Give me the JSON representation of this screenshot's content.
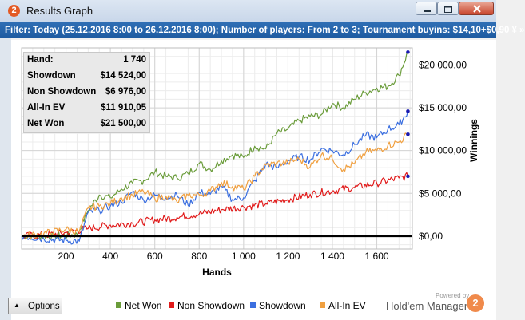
{
  "window": {
    "app_icon_text": "2",
    "title": "Results Graph"
  },
  "filter_text": "Filter: Today (25.12.2016 8:00 to 26.12.2016 8:00); Number of players: From 2 to 3; Tournament buyins: $14,10+$0,90 ¥ »",
  "stats": [
    {
      "label": "Hand:",
      "value": "1 740"
    },
    {
      "label": "Showdown",
      "value": "$14 524,00"
    },
    {
      "label": "Non Showdown",
      "value": "$6 976,00"
    },
    {
      "label": "All-In EV",
      "value": "$11 910,05"
    },
    {
      "label": "Net Won",
      "value": "$21 500,00"
    }
  ],
  "options_label": "Options",
  "powered_by": "Powered by",
  "brand_name": "Hold'em Manager",
  "brand_icon_text": "2",
  "colors": {
    "net_won": "#6a9c3a",
    "non_showdown": "#e11b1b",
    "showdown": "#3b6fe0",
    "all_in_ev": "#f0a040",
    "filter_bar": "#2265ab"
  },
  "chart_data": {
    "type": "line",
    "xlabel": "Hands",
    "ylabel": "Winnings",
    "xlim": [
      0,
      1760
    ],
    "ylim": [
      -1500,
      22000
    ],
    "x_ticks": [
      200,
      400,
      600,
      800,
      1000,
      1200,
      1400,
      1600
    ],
    "x_tick_labels": [
      "200",
      "400",
      "600",
      "800",
      "1 000",
      "1 200",
      "1 400",
      "1 600"
    ],
    "y_ticks": [
      0,
      5000,
      10000,
      15000,
      20000
    ],
    "y_tick_labels": [
      "$0,00",
      "$5 000,00",
      "$10 000,00",
      "$15 000,00",
      "$20 000,00"
    ],
    "grid": true,
    "legend_position": "bottom",
    "series": [
      {
        "name": "Net Won",
        "color": "#6a9c3a",
        "x": [
          0,
          150,
          250,
          300,
          350,
          400,
          450,
          500,
          550,
          600,
          650,
          700,
          750,
          800,
          850,
          900,
          950,
          1000,
          1050,
          1100,
          1150,
          1200,
          1250,
          1300,
          1350,
          1400,
          1450,
          1500,
          1550,
          1600,
          1650,
          1700,
          1740
        ],
        "y": [
          0,
          0,
          200,
          3000,
          4800,
          4500,
          5500,
          6200,
          6500,
          7500,
          7000,
          6800,
          7300,
          8500,
          7800,
          8800,
          9500,
          9200,
          10500,
          10200,
          12000,
          12500,
          13500,
          14000,
          14200,
          15500,
          15000,
          16000,
          16800,
          17300,
          17500,
          18800,
          21500
        ]
      },
      {
        "name": "Non Showdown",
        "color": "#e11b1b",
        "x": [
          0,
          100,
          200,
          300,
          400,
          500,
          600,
          700,
          800,
          900,
          1000,
          1100,
          1200,
          1300,
          1400,
          1500,
          1600,
          1700,
          1740
        ],
        "y": [
          0,
          100,
          400,
          900,
          1300,
          1500,
          1900,
          2200,
          2600,
          3100,
          3400,
          3800,
          4300,
          4900,
          5300,
          5700,
          6200,
          6800,
          7000
        ]
      },
      {
        "name": "Showdown",
        "color": "#3b6fe0",
        "x": [
          0,
          100,
          200,
          260,
          300,
          350,
          400,
          450,
          500,
          550,
          600,
          650,
          700,
          750,
          800,
          850,
          900,
          950,
          1000,
          1050,
          1100,
          1150,
          1200,
          1250,
          1300,
          1350,
          1400,
          1450,
          1500,
          1550,
          1600,
          1650,
          1700,
          1740
        ],
        "y": [
          0,
          -300,
          -500,
          -600,
          2800,
          3000,
          3500,
          4000,
          5200,
          4200,
          4800,
          4500,
          4800,
          3600,
          5100,
          4900,
          5800,
          4300,
          4500,
          6500,
          8400,
          8000,
          8800,
          9300,
          8900,
          10200,
          10000,
          9500,
          10700,
          11800,
          11500,
          12500,
          13000,
          14600
        ]
      },
      {
        "name": "All-In EV",
        "color": "#f0a040",
        "x": [
          0,
          100,
          200,
          260,
          300,
          350,
          400,
          450,
          500,
          550,
          600,
          650,
          700,
          750,
          800,
          850,
          900,
          950,
          1000,
          1050,
          1100,
          1150,
          1200,
          1250,
          1300,
          1350,
          1400,
          1450,
          1500,
          1550,
          1600,
          1650,
          1700,
          1740
        ],
        "y": [
          0,
          300,
          800,
          500,
          3300,
          3500,
          3800,
          4500,
          4800,
          5200,
          4400,
          4700,
          4000,
          4800,
          4800,
          5300,
          6300,
          5800,
          5500,
          7000,
          8300,
          8500,
          8600,
          9000,
          8100,
          9500,
          9000,
          7800,
          8500,
          9800,
          10000,
          10600,
          11000,
          11900
        ]
      }
    ]
  }
}
